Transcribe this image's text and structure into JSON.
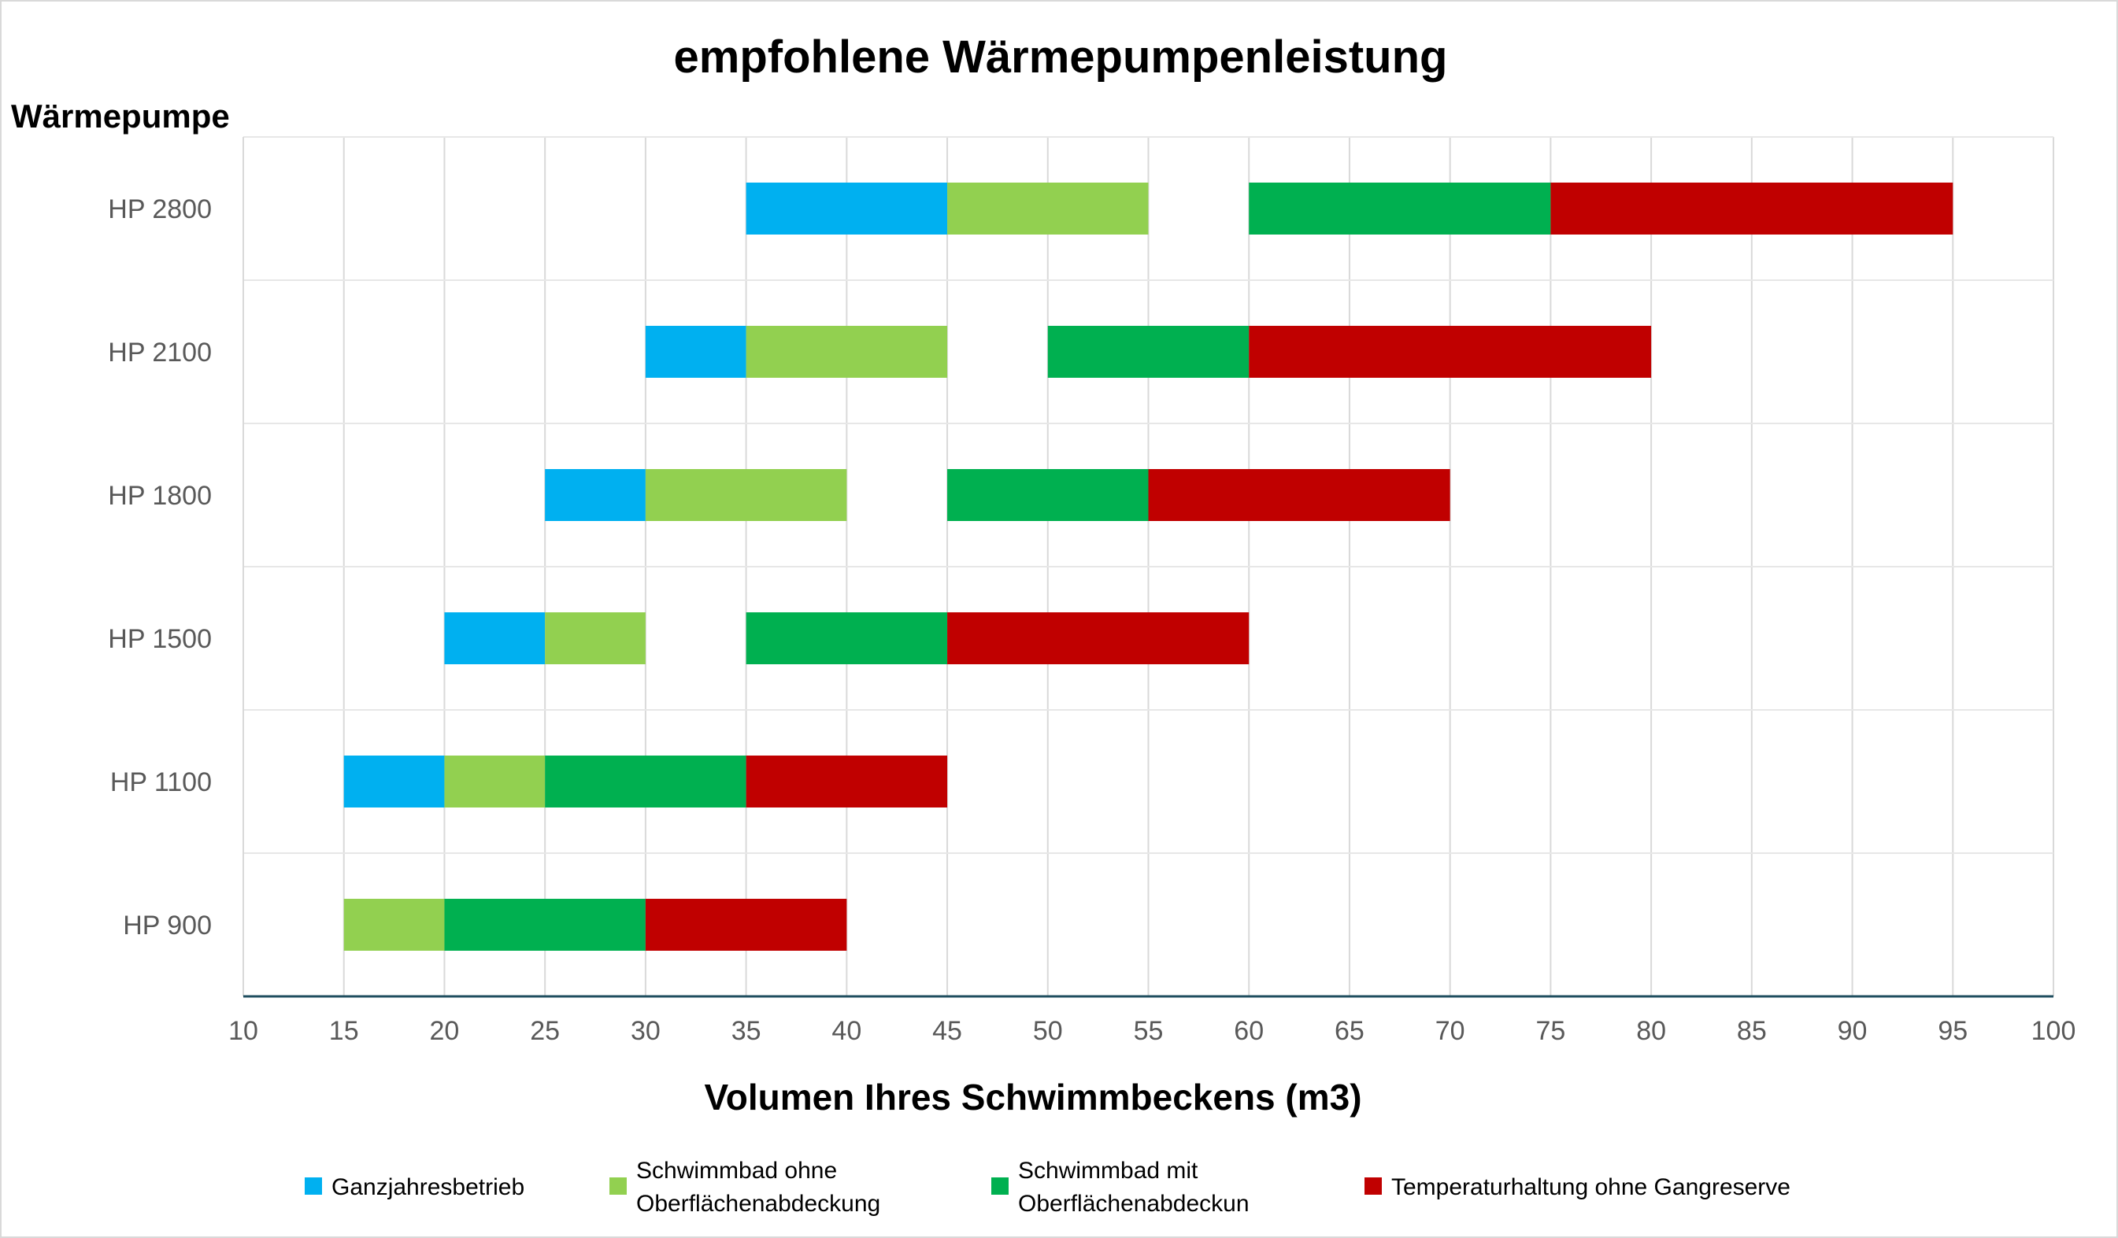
{
  "chart_data": {
    "type": "bar",
    "orientation": "horizontal",
    "stacking": "floating-ranges",
    "title": "empfohlene Wärmepumpenleistung",
    "ylabel": "Wärmepumpe",
    "xlabel": "Volumen Ihres Schwimmbeckens (m3)",
    "xlim": [
      10,
      100
    ],
    "xticks": [
      10,
      15,
      20,
      25,
      30,
      35,
      40,
      45,
      50,
      55,
      60,
      65,
      70,
      75,
      80,
      85,
      90,
      95,
      100
    ],
    "grid": true,
    "legend_position": "bottom",
    "categories": [
      "HP 2800",
      "HP 2100",
      "HP 1800",
      "HP 1500",
      "HP 1100",
      "HP 900"
    ],
    "series": [
      {
        "name": "Ganzjahresbetrieb",
        "legend_lines": [
          "Ganzjahresbetrieb"
        ],
        "color": "#00b0f0",
        "ranges": [
          [
            35,
            45
          ],
          [
            30,
            35
          ],
          [
            25,
            30
          ],
          [
            20,
            25
          ],
          [
            15,
            20
          ],
          null
        ]
      },
      {
        "name": "Schwimmbad ohne Oberflächenabdeckung",
        "legend_lines": [
          "Schwimmbad ohne",
          "Oberflächenabdeckung"
        ],
        "color": "#92d050",
        "ranges": [
          [
            45,
            55
          ],
          [
            35,
            45
          ],
          [
            30,
            40
          ],
          [
            25,
            30
          ],
          [
            20,
            25
          ],
          [
            15,
            20
          ]
        ]
      },
      {
        "name": "Schwimmbad mit Oberflächenabdeckun",
        "legend_lines": [
          "Schwimmbad mit",
          "Oberflächenabdeckun"
        ],
        "color": "#00b050",
        "ranges": [
          [
            60,
            75
          ],
          [
            50,
            60
          ],
          [
            45,
            55
          ],
          [
            35,
            45
          ],
          [
            25,
            35
          ],
          [
            20,
            30
          ]
        ]
      },
      {
        "name": "Temperaturhaltung ohne Gangreserve",
        "legend_lines": [
          "Temperaturhaltung ohne Gangreserve"
        ],
        "color": "#c00000",
        "ranges": [
          [
            75,
            95
          ],
          [
            60,
            80
          ],
          [
            55,
            70
          ],
          [
            45,
            60
          ],
          [
            35,
            45
          ],
          [
            30,
            40
          ]
        ]
      }
    ]
  }
}
